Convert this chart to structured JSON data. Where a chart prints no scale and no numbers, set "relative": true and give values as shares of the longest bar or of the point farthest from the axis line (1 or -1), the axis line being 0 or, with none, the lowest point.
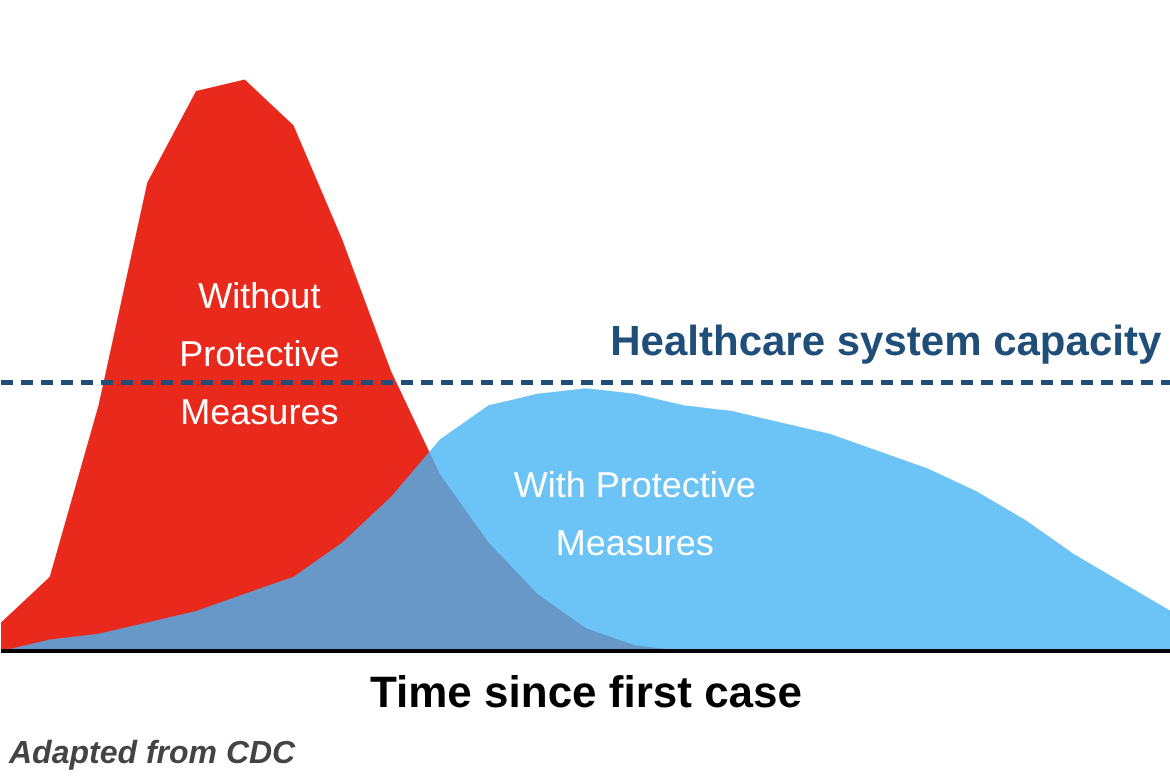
{
  "chart_data": {
    "type": "area",
    "relative": true,
    "xlabel": "Time since first case",
    "categories": [
      null,
      null,
      null,
      null,
      null,
      null,
      null,
      null,
      null,
      null,
      null,
      null,
      null,
      null,
      null,
      null,
      null,
      null,
      null,
      null,
      null,
      null,
      null,
      null,
      null
    ],
    "series": [
      {
        "name": "Without Protective Measures",
        "color": "#e8291c",
        "values": [
          0.05,
          0.13,
          0.43,
          0.82,
          0.98,
          1.0,
          0.92,
          0.72,
          0.49,
          0.31,
          0.19,
          0.1,
          0.04,
          0.01,
          0,
          0,
          0,
          0,
          0,
          0,
          0,
          0,
          0,
          0,
          0
        ]
      },
      {
        "name": "With Protective Measures",
        "color": "#46b4f4",
        "values": [
          0,
          0.02,
          0.03,
          0.05,
          0.07,
          0.1,
          0.13,
          0.19,
          0.27,
          0.37,
          0.43,
          0.45,
          0.46,
          0.45,
          0.43,
          0.42,
          0.4,
          0.38,
          0.35,
          0.32,
          0.28,
          0.23,
          0.17,
          0.12,
          0.07
        ]
      }
    ],
    "ref_lines": [
      {
        "axis": "y",
        "value": 0.47,
        "label": "Healthcare system capacity",
        "color": "#1f4e79",
        "line_style": "dashed"
      }
    ],
    "annotations": [
      "Adapted from CDC"
    ],
    "grid": false
  }
}
